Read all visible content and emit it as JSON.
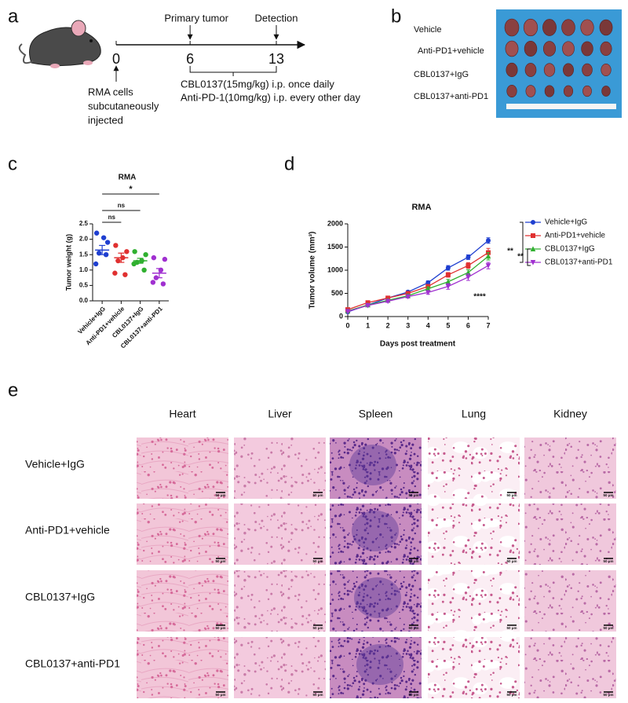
{
  "panel_labels": [
    "a",
    "b",
    "c",
    "d",
    "e"
  ],
  "timeline": {
    "days": [
      0,
      6,
      13
    ],
    "marks": [
      {
        "label": "Primary tumor",
        "day": 6
      },
      {
        "label": "Detection",
        "day": 13
      }
    ],
    "injection": [
      "RMA cells",
      "subcutaneously",
      "injected"
    ],
    "regimen": [
      "CBL0137(15mg/kg) i.p. once daily",
      "Anti-PD-1(10mg/kg) i.p. every other day"
    ]
  },
  "photo": {
    "groups": [
      "Vehicle",
      "Anti-PD1+vehicle",
      "CBL0137+IgG",
      "CBL0137+anti-PD1"
    ]
  },
  "chart_data": [
    {
      "type": "dot",
      "title": "RMA",
      "ylabel": "Tumor weight (g)",
      "categories": [
        "Vehicle+IgG",
        "Anti-PD1+vehicle",
        "CBL0137+IgG",
        "CBL0137+anti-PD1"
      ],
      "colors": [
        "#1f3fd0",
        "#e03030",
        "#30b030",
        "#a030d0"
      ],
      "values": [
        [
          2.2,
          1.9,
          2.05,
          1.55,
          1.2,
          1.5
        ],
        [
          1.8,
          1.6,
          1.4,
          1.3,
          0.9,
          0.85
        ],
        [
          1.6,
          1.5,
          1.3,
          1.25,
          1.2,
          1.0
        ],
        [
          1.4,
          1.35,
          1.0,
          0.75,
          0.6,
          0.55
        ]
      ],
      "means": [
        1.65,
        1.4,
        1.3,
        0.9
      ],
      "sems": [
        0.15,
        0.15,
        0.08,
        0.15
      ],
      "ylim": [
        0,
        2.5
      ],
      "yticks": [
        {
          "value": 0,
          "label": "0.0"
        },
        0.5,
        {
          "value": 1,
          "label": "1.0"
        },
        1.5,
        {
          "value": 2,
          "label": "2.0"
        },
        2.5
      ],
      "annotations": [
        "ns",
        "ns",
        "*"
      ]
    },
    {
      "type": "line",
      "title": "RMA",
      "xlabel": "Days post treatment",
      "ylabel": "Tumor volume (mm³)",
      "x": [
        0,
        1,
        2,
        3,
        4,
        5,
        6,
        7
      ],
      "series": [
        {
          "name": "Vehicle+IgG",
          "color": "#1f3fd0",
          "marker": "circle",
          "values": [
            100,
            250,
            400,
            530,
            730,
            1050,
            1280,
            1640
          ],
          "errors": [
            15,
            20,
            25,
            30,
            40,
            50,
            50,
            60
          ]
        },
        {
          "name": "Anti-PD1+vehicle",
          "color": "#e03030",
          "marker": "square",
          "values": [
            150,
            300,
            400,
            500,
            650,
            900,
            1100,
            1380
          ],
          "errors": [
            15,
            20,
            25,
            30,
            40,
            50,
            60,
            90
          ]
        },
        {
          "name": "CBL0137+IgG",
          "color": "#30b030",
          "marker": "triangle",
          "values": [
            120,
            250,
            350,
            450,
            600,
            750,
            950,
            1300
          ],
          "errors": [
            15,
            20,
            25,
            30,
            40,
            50,
            60,
            80
          ]
        },
        {
          "name": "CBL0137+anti-PD1",
          "color": "#a030d0",
          "marker": "triangle-down",
          "values": [
            110,
            240,
            330,
            430,
            520,
            650,
            850,
            1100
          ],
          "errors": [
            15,
            20,
            25,
            30,
            40,
            60,
            70,
            70
          ]
        }
      ],
      "xlim": [
        0,
        7
      ],
      "xticks": [
        0,
        1,
        2,
        3,
        4,
        5,
        6,
        7
      ],
      "ylim": [
        0,
        2000
      ],
      "yticks": [
        0,
        500,
        1000,
        1500,
        2000
      ],
      "legend": "right",
      "annotations": [
        "**",
        "**",
        "****"
      ]
    }
  ],
  "histology": {
    "organs": [
      "Heart",
      "Liver",
      "Spleen",
      "Lung",
      "Kidney"
    ],
    "groups": [
      "Vehicle+IgG",
      "Anti-PD1+vehicle",
      "CBL0137+IgG",
      "CBL0137+anti-PD1"
    ],
    "scale_bar": "50 μm"
  }
}
